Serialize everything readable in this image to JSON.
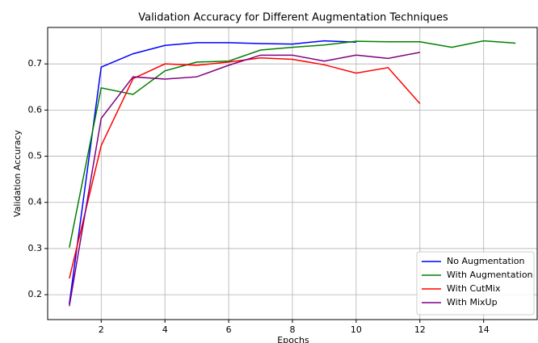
{
  "chart_data": {
    "type": "line",
    "title": "Validation Accuracy for Different Augmentation Techniques",
    "xlabel": "Epochs",
    "ylabel": "Validation Accuracy",
    "x": [
      1,
      2,
      3,
      4,
      5,
      6,
      7,
      8,
      9,
      10,
      11,
      12,
      13,
      14,
      15
    ],
    "series": [
      {
        "name": "No Augmentation",
        "color": "#0000ff",
        "values": [
          0.18,
          0.693,
          0.722,
          0.74,
          0.746,
          0.746,
          0.744,
          0.743,
          0.75,
          0.747,
          null,
          null,
          null,
          null,
          null
        ]
      },
      {
        "name": "With Augmentation",
        "color": "#008000",
        "values": [
          0.302,
          0.648,
          0.634,
          0.685,
          0.704,
          0.706,
          0.73,
          0.736,
          0.741,
          0.749,
          0.748,
          0.748,
          0.736,
          0.75,
          0.745
        ]
      },
      {
        "name": "With CutMix",
        "color": "#ff0000",
        "values": [
          0.235,
          0.523,
          0.668,
          0.7,
          0.697,
          0.704,
          0.713,
          0.71,
          0.698,
          0.68,
          0.692,
          0.614,
          null,
          null,
          null
        ]
      },
      {
        "name": "With MixUp",
        "color": "#800080",
        "values": [
          0.175,
          0.582,
          0.672,
          0.667,
          0.672,
          0.697,
          0.719,
          0.719,
          0.706,
          0.719,
          0.712,
          0.725,
          null,
          null,
          null
        ]
      }
    ],
    "xlim": [
      0.32,
      15.68
    ],
    "ylim": [
      0.146,
      0.779
    ],
    "xticks": [
      2,
      4,
      6,
      8,
      10,
      12,
      14
    ],
    "yticks": [
      0.2,
      0.3,
      0.4,
      0.5,
      0.6,
      0.7
    ],
    "grid": true,
    "legend": "lower right"
  }
}
